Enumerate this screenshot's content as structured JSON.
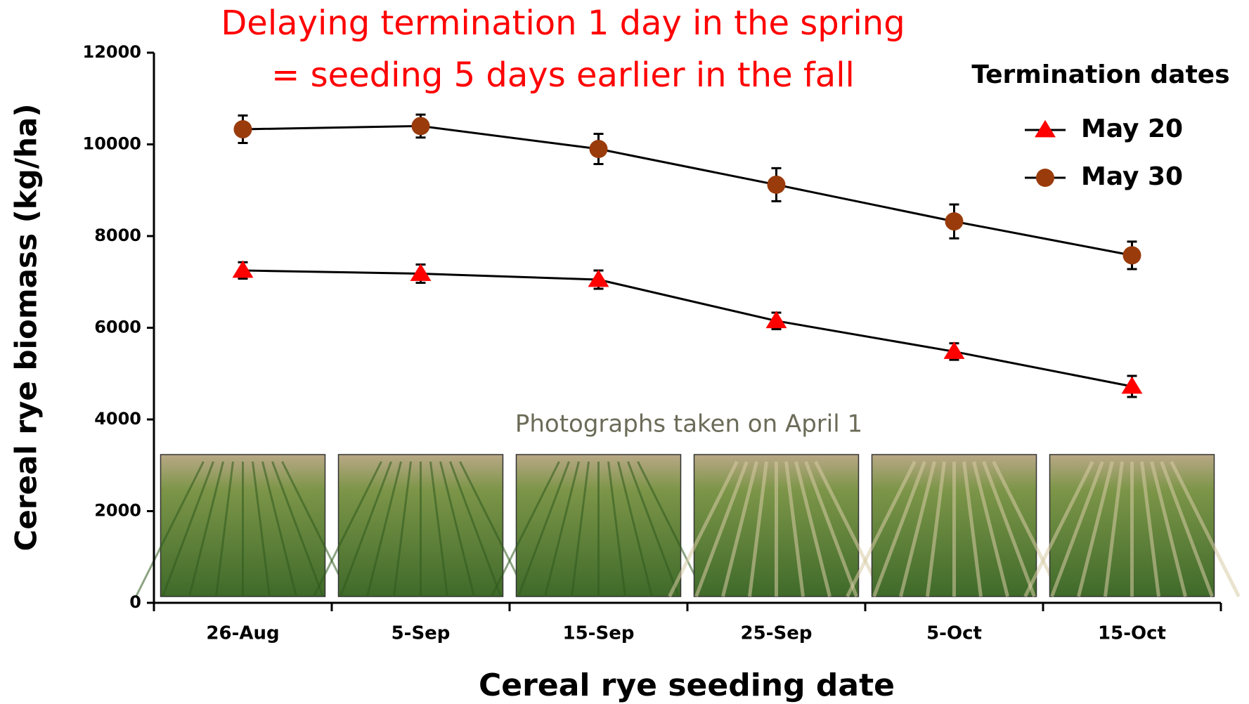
{
  "chart_data": {
    "type": "line",
    "annotations": [
      "Delaying termination 1 day in the spring",
      "= seeding 5 days earlier in the fall"
    ],
    "photo_caption": "Photographs taken on April 1",
    "x_label": "Cereal rye seeding date",
    "y_label": "Cereal rye biomass (kg/ha)",
    "legend_title": "Termination dates",
    "legend_position": "upper right",
    "grid": false,
    "line_color": "#000000",
    "categories": [
      "26-Aug",
      "5-Sep",
      "15-Sep",
      "25-Sep",
      "5-Oct",
      "15-Oct"
    ],
    "ylim": [
      0,
      12000
    ],
    "yticks": [
      0,
      2000,
      4000,
      6000,
      8000,
      10000,
      12000
    ],
    "series": [
      {
        "name": "May 20",
        "color": "#ff0000",
        "marker": "triangle",
        "values": [
          7250,
          7180,
          7050,
          6150,
          5480,
          4720
        ],
        "errors": [
          180,
          200,
          200,
          180,
          180,
          230
        ]
      },
      {
        "name": "May 30",
        "color": "#9a3b0c",
        "marker": "circle",
        "values": [
          10330,
          10400,
          9900,
          9120,
          8320,
          7580
        ],
        "errors": [
          300,
          250,
          330,
          360,
          370,
          300
        ]
      }
    ]
  }
}
